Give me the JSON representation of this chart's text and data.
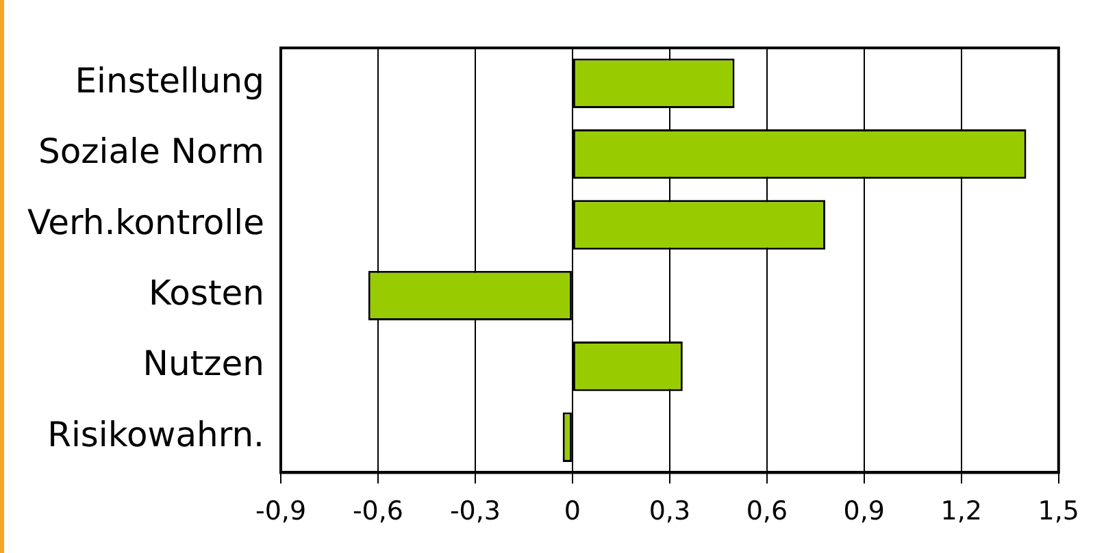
{
  "chart_data": {
    "type": "bar",
    "orientation": "horizontal",
    "categories": [
      "Einstellung",
      "Soziale Norm",
      "Verh.kontrolle",
      "Kosten",
      "Nutzen",
      "Risikowahrn."
    ],
    "values": [
      0.5,
      1.4,
      0.78,
      -0.63,
      0.34,
      -0.03
    ],
    "color": "#99cc00",
    "xlim": [
      -0.9,
      1.5
    ],
    "xticks": [
      {
        "value": -0.9,
        "label": "-0,9"
      },
      {
        "value": -0.6,
        "label": "-0,6"
      },
      {
        "value": -0.3,
        "label": "-0,3"
      },
      0,
      {
        "value": 0.3,
        "label": "0,3"
      },
      {
        "value": 0.6,
        "label": "0,6"
      },
      {
        "value": 0.9,
        "label": "0,9"
      },
      {
        "value": 1.2,
        "label": "1,2"
      },
      {
        "value": 1.5,
        "label": "1,5"
      }
    ],
    "grid": "x",
    "legend": false
  }
}
